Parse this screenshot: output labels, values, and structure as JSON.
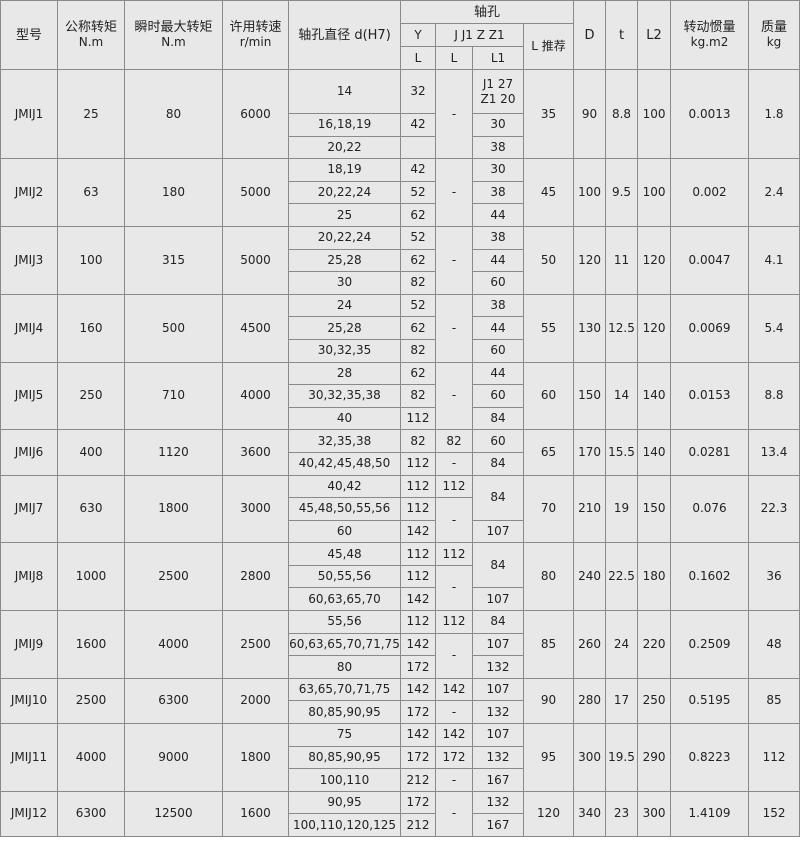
{
  "header": {
    "model": "型号",
    "nominal_torque": "公称转矩",
    "nominal_torque_unit": "N.m",
    "peak_torque": "瞬时最大转矩",
    "peak_torque_unit": "N.m",
    "speed": "许用转速",
    "speed_unit": "r/min",
    "bore_diameter": "轴孔直径 d(H7)",
    "shaft_hole": "轴孔",
    "y": "Y",
    "jj1zz1": "J J1 Z Z1",
    "l_y": "L",
    "l_j": "L",
    "l1": "L1",
    "l_recommended": "L 推荐",
    "D": "D",
    "t": "t",
    "L2": "L2",
    "inertia": "转动惯量",
    "inertia_unit": "kg.m2",
    "mass": "质量",
    "mass_unit": "kg"
  },
  "rows": [
    {
      "model": "JMIJ1",
      "nominal": "25",
      "peak": "80",
      "speed": "6000",
      "L": "35",
      "D": "90",
      "t": "8.8",
      "L2": "100",
      "inertia": "0.0013",
      "mass": "1.8",
      "d": [
        "14",
        "16,18,19",
        "20,22"
      ],
      "y": [
        "32",
        "42",
        ""
      ],
      "jl": [
        {
          "v": "-",
          "n": 3
        }
      ],
      "l1": [
        {
          "v": "J1 27\nZ1 20",
          "n": 1
        },
        {
          "v": "30",
          "n": 1
        },
        {
          "v": "38",
          "n": 1
        }
      ]
    },
    {
      "model": "JMIJ2",
      "nominal": "63",
      "peak": "180",
      "speed": "5000",
      "L": "45",
      "D": "100",
      "t": "9.5",
      "L2": "100",
      "inertia": "0.002",
      "mass": "2.4",
      "d": [
        "18,19",
        "20,22,24",
        "25"
      ],
      "y": [
        "42",
        "52",
        "62"
      ],
      "jl": [
        {
          "v": "-",
          "n": 3
        }
      ],
      "l1": [
        {
          "v": "30",
          "n": 1
        },
        {
          "v": "38",
          "n": 1
        },
        {
          "v": "44",
          "n": 1
        }
      ]
    },
    {
      "model": "JMIJ3",
      "nominal": "100",
      "peak": "315",
      "speed": "5000",
      "L": "50",
      "D": "120",
      "t": "11",
      "L2": "120",
      "inertia": "0.0047",
      "mass": "4.1",
      "d": [
        "20,22,24",
        "25,28",
        "30"
      ],
      "y": [
        "52",
        "62",
        "82"
      ],
      "jl": [
        {
          "v": "-",
          "n": 3
        }
      ],
      "l1": [
        {
          "v": "38",
          "n": 1
        },
        {
          "v": "44",
          "n": 1
        },
        {
          "v": "60",
          "n": 1
        }
      ]
    },
    {
      "model": "JMIJ4",
      "nominal": "160",
      "peak": "500",
      "speed": "4500",
      "L": "55",
      "D": "130",
      "t": "12.5",
      "L2": "120",
      "inertia": "0.0069",
      "mass": "5.4",
      "d": [
        "24",
        "25,28",
        "30,32,35"
      ],
      "y": [
        "52",
        "62",
        "82"
      ],
      "jl": [
        {
          "v": "-",
          "n": 3
        }
      ],
      "l1": [
        {
          "v": "38",
          "n": 1
        },
        {
          "v": "44",
          "n": 1
        },
        {
          "v": "60",
          "n": 1
        }
      ]
    },
    {
      "model": "JMIJ5",
      "nominal": "250",
      "peak": "710",
      "speed": "4000",
      "L": "60",
      "D": "150",
      "t": "14",
      "L2": "140",
      "inertia": "0.0153",
      "mass": "8.8",
      "d": [
        "28",
        "30,32,35,38",
        "40"
      ],
      "y": [
        "62",
        "82",
        "112"
      ],
      "jl": [
        {
          "v": "-",
          "n": 3
        }
      ],
      "l1": [
        {
          "v": "44",
          "n": 1
        },
        {
          "v": "60",
          "n": 1
        },
        {
          "v": "84",
          "n": 1
        }
      ]
    },
    {
      "model": "JMIJ6",
      "nominal": "400",
      "peak": "1120",
      "speed": "3600",
      "L": "65",
      "D": "170",
      "t": "15.5",
      "L2": "140",
      "inertia": "0.0281",
      "mass": "13.4",
      "d": [
        "32,35,38",
        "40,42,45,48,50"
      ],
      "y": [
        "82",
        "112"
      ],
      "jl": [
        {
          "v": "82",
          "n": 1
        },
        {
          "v": "-",
          "n": 1
        }
      ],
      "l1": [
        {
          "v": "60",
          "n": 1
        },
        {
          "v": "84",
          "n": 1
        }
      ]
    },
    {
      "model": "JMIJ7",
      "nominal": "630",
      "peak": "1800",
      "speed": "3000",
      "L": "70",
      "D": "210",
      "t": "19",
      "L2": "150",
      "inertia": "0.076",
      "mass": "22.3",
      "d": [
        "40,42",
        "45,48,50,55,56",
        "60"
      ],
      "y": [
        "112",
        "112",
        "142"
      ],
      "jl": [
        {
          "v": "112",
          "n": 1
        },
        {
          "v": "-",
          "n": 2
        }
      ],
      "l1": [
        {
          "v": "84",
          "n": 2
        },
        {
          "v": "107",
          "n": 1
        }
      ]
    },
    {
      "model": "JMIJ8",
      "nominal": "1000",
      "peak": "2500",
      "speed": "2800",
      "L": "80",
      "D": "240",
      "t": "22.5",
      "L2": "180",
      "inertia": "0.1602",
      "mass": "36",
      "d": [
        "45,48",
        "50,55,56",
        "60,63,65,70"
      ],
      "y": [
        "112",
        "112",
        "142"
      ],
      "jl": [
        {
          "v": "112",
          "n": 1
        },
        {
          "v": "-",
          "n": 2
        }
      ],
      "l1": [
        {
          "v": "84",
          "n": 2
        },
        {
          "v": "107",
          "n": 1
        }
      ]
    },
    {
      "model": "JMIJ9",
      "nominal": "1600",
      "peak": "4000",
      "speed": "2500",
      "L": "85",
      "D": "260",
      "t": "24",
      "L2": "220",
      "inertia": "0.2509",
      "mass": "48",
      "d": [
        "55,56",
        "60,63,65,70,71,75",
        "80"
      ],
      "y": [
        "112",
        "142",
        "172"
      ],
      "jl": [
        {
          "v": "112",
          "n": 1
        },
        {
          "v": "-",
          "n": 2
        }
      ],
      "l1": [
        {
          "v": "84",
          "n": 1
        },
        {
          "v": "107",
          "n": 1
        },
        {
          "v": "132",
          "n": 1
        }
      ]
    },
    {
      "model": "JMIJ10",
      "nominal": "2500",
      "peak": "6300",
      "speed": "2000",
      "L": "90",
      "D": "280",
      "t": "17",
      "L2": "250",
      "inertia": "0.5195",
      "mass": "85",
      "d": [
        "63,65,70,71,75",
        "80,85,90,95"
      ],
      "y": [
        "142",
        "172"
      ],
      "jl": [
        {
          "v": "142",
          "n": 1
        },
        {
          "v": "-",
          "n": 1
        }
      ],
      "l1": [
        {
          "v": "107",
          "n": 1
        },
        {
          "v": "132",
          "n": 1
        }
      ]
    },
    {
      "model": "JMIJ11",
      "nominal": "4000",
      "peak": "9000",
      "speed": "1800",
      "L": "95",
      "D": "300",
      "t": "19.5",
      "L2": "290",
      "inertia": "0.8223",
      "mass": "112",
      "d": [
        "75",
        "80,85,90,95",
        "100,110"
      ],
      "y": [
        "142",
        "172",
        "212"
      ],
      "jl": [
        {
          "v": "142",
          "n": 1
        },
        {
          "v": "172",
          "n": 1
        },
        {
          "v": "-",
          "n": 1
        }
      ],
      "l1": [
        {
          "v": "107",
          "n": 1
        },
        {
          "v": "132",
          "n": 1
        },
        {
          "v": "167",
          "n": 1
        }
      ]
    },
    {
      "model": "JMIJ12",
      "nominal": "6300",
      "peak": "12500",
      "speed": "1600",
      "L": "120",
      "D": "340",
      "t": "23",
      "L2": "300",
      "inertia": "1.4109",
      "mass": "152",
      "d": [
        "90,95",
        "100,110,120,125"
      ],
      "y": [
        "172",
        "212"
      ],
      "jl": [
        {
          "v": "-",
          "n": 2
        }
      ],
      "l1": [
        {
          "v": "132",
          "n": 1
        },
        {
          "v": "167",
          "n": 1
        }
      ]
    }
  ]
}
